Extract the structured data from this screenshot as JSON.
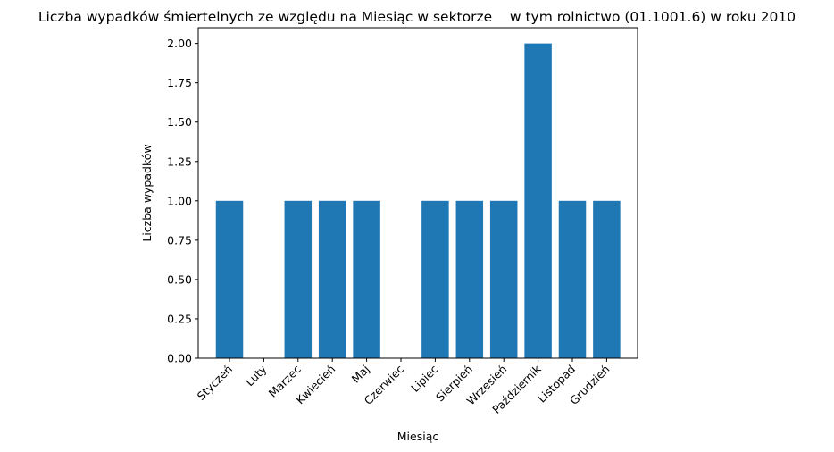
{
  "chart_data": {
    "type": "bar",
    "title": "Liczba wypadków śmiertelnych ze względu na Miesiąc w sektorze    w tym rolnictwo (01.1001.6) w roku 2010",
    "xlabel": "Miesiąc",
    "ylabel": "Liczba wypadków",
    "categories": [
      "Styczeń",
      "Luty",
      "Marzec",
      "Kwiecień",
      "Maj",
      "Czerwiec",
      "Lipiec",
      "Sierpień",
      "Wrzesień",
      "Październik",
      "Listopad",
      "Grudzień"
    ],
    "values": [
      1,
      0,
      1,
      1,
      1,
      0,
      1,
      1,
      1,
      2,
      1,
      1
    ],
    "ylim": [
      0,
      2.1
    ],
    "yticks": [
      "0.00",
      "0.25",
      "0.50",
      "0.75",
      "1.00",
      "1.25",
      "1.50",
      "1.75",
      "2.00"
    ],
    "bar_color": "#1f77b4",
    "grid": false
  }
}
